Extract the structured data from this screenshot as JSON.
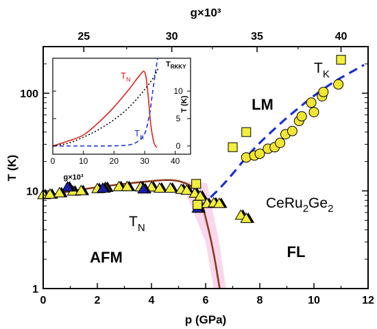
{
  "chart_data": [
    {
      "type": "scatter",
      "xlabel": "p (GPa)",
      "ylabel": "T (K)",
      "top_axis_label": "g×10³",
      "xlim": [
        0,
        12
      ],
      "ylim": [
        1,
        300
      ],
      "yscale": "log",
      "x_ticks": [
        "0",
        "2",
        "4",
        "6",
        "8",
        "10",
        "12"
      ],
      "y_ticks": [
        "1",
        "10",
        "100"
      ],
      "top_ticks": [
        "25",
        "30",
        "35",
        "40"
      ],
      "top_tick_positions_p": [
        1.5,
        4.75,
        7.9,
        11.0
      ],
      "region_labels": {
        "afm": "AFM",
        "lm": "LM",
        "fl": "FL",
        "compound_main": "CeRu",
        "compound_sub1": "2",
        "compound_mid": "Ge",
        "compound_sub2": "2",
        "tn_main": "T",
        "tn_sub": "N",
        "tk_main": "T",
        "tk_sub": "K"
      },
      "colors": {
        "tn_curve": "#8b3a1a",
        "tk_fit": "#1a2fd6",
        "yellow": "#f2ee3c",
        "navy": "#1c1fa8",
        "circle": "#f2e634",
        "band": "#f7cde8"
      },
      "series": [
        {
          "name": "T_N fit",
          "style": "line",
          "points": [
            [
              0,
              8.8
            ],
            [
              0.5,
              9.3
            ],
            [
              1,
              9.9
            ],
            [
              2,
              10.9
            ],
            [
              3,
              11.8
            ],
            [
              4,
              12.6
            ],
            [
              4.5,
              12.9
            ],
            [
              5,
              12.6
            ],
            [
              5.5,
              11
            ],
            [
              5.8,
              8.5
            ],
            [
              6.0,
              5.3
            ],
            [
              6.2,
              3.1
            ],
            [
              6.35,
              1.9
            ],
            [
              6.45,
              1.3
            ],
            [
              6.52,
              1
            ]
          ]
        },
        {
          "name": "T_K fit",
          "style": "dashed",
          "points": [
            [
              5.8,
              6.8
            ],
            [
              6.5,
              10.5
            ],
            [
              7.0,
              15
            ],
            [
              7.5,
              22
            ],
            [
              8.0,
              31
            ],
            [
              8.5,
              42
            ],
            [
              9.0,
              56
            ],
            [
              9.5,
              73
            ],
            [
              10.0,
              94
            ],
            [
              10.5,
              118
            ],
            [
              11.0,
              144
            ],
            [
              11.5,
              172
            ],
            [
              11.85,
              195
            ]
          ]
        },
        {
          "name": "T_N triangles (yellow/black)",
          "marker": "triangle",
          "points": [
            [
              0,
              9.1
            ],
            [
              0.25,
              9.2
            ],
            [
              0.6,
              9.5
            ],
            [
              1.1,
              9.9
            ],
            [
              1.4,
              10
            ],
            [
              2.0,
              10.5
            ],
            [
              2.3,
              10.8
            ],
            [
              2.8,
              11
            ],
            [
              3.1,
              11
            ],
            [
              3.6,
              10.9
            ],
            [
              4.0,
              10.9
            ],
            [
              4.3,
              10.6
            ],
            [
              4.7,
              10.6
            ],
            [
              5.1,
              10.3
            ],
            [
              5.3,
              10.1
            ],
            [
              5.6,
              9.4
            ],
            [
              5.8,
              8.8
            ],
            [
              6.05,
              7.4
            ],
            [
              6.3,
              7.5
            ],
            [
              6.5,
              7.4
            ],
            [
              7.3,
              5.6
            ],
            [
              7.5,
              5.2
            ]
          ]
        },
        {
          "name": "T_N triangles (blue)",
          "marker": "triangle",
          "points": [
            [
              0.9,
              10.9
            ],
            [
              2.2,
              10.6
            ],
            [
              3.7,
              10.4
            ],
            [
              5.7,
              6.6
            ]
          ]
        },
        {
          "name": "T_K squares",
          "marker": "square",
          "points": [
            [
              5.65,
              11.8
            ],
            [
              5.7,
              7.2
            ],
            [
              7.0,
              28
            ],
            [
              7.5,
              40
            ],
            [
              11.0,
              220
            ]
          ]
        },
        {
          "name": "T_K circles",
          "marker": "circle",
          "points": [
            [
              7.5,
              22
            ],
            [
              7.8,
              23
            ],
            [
              8.0,
              24
            ],
            [
              8.3,
              27
            ],
            [
              8.55,
              28
            ],
            [
              8.75,
              31
            ],
            [
              8.95,
              38
            ],
            [
              9.2,
              41
            ],
            [
              9.45,
              52
            ],
            [
              9.55,
              58
            ],
            [
              9.9,
              80
            ],
            [
              10.0,
              64
            ],
            [
              10.3,
              93
            ],
            [
              10.35,
              103
            ],
            [
              10.9,
              123
            ]
          ]
        }
      ]
    },
    {
      "type": "line",
      "xlabel": "g×10³",
      "ylabel": "T (K)",
      "xlim": [
        0,
        45
      ],
      "ylim": [
        -1.5,
        16
      ],
      "x_ticks": [
        "0",
        "10",
        "20",
        "30",
        "40"
      ],
      "y_ticks": [
        "0",
        "5",
        "10"
      ],
      "series": [
        {
          "name": "T_N",
          "color": "#e02020",
          "style": "solid",
          "points": [
            [
              0,
              0
            ],
            [
              5,
              0.9
            ],
            [
              10,
              2.0
            ],
            [
              15,
              4.3
            ],
            [
              20,
              7.1
            ],
            [
              25,
              10.4
            ],
            [
              28,
              12.6
            ],
            [
              30,
              13.5
            ],
            [
              31,
              10
            ],
            [
              32,
              4
            ],
            [
              33,
              0.7
            ],
            [
              34,
              -0.3
            ]
          ]
        },
        {
          "name": "T_RKKY",
          "color": "#000000",
          "style": "dotted",
          "points": [
            [
              0,
              0
            ],
            [
              5,
              0.5
            ],
            [
              10,
              1.6
            ],
            [
              15,
              3.0
            ],
            [
              20,
              4.8
            ],
            [
              25,
              7.1
            ],
            [
              30,
              10.3
            ],
            [
              33,
              12.6
            ],
            [
              34.5,
              14.2
            ]
          ]
        },
        {
          "name": "T_K",
          "color": "#1a2fd6",
          "style": "dashed",
          "points": [
            [
              0,
              0
            ],
            [
              10,
              0
            ],
            [
              15,
              0
            ],
            [
              20,
              0.03
            ],
            [
              25,
              0.2
            ],
            [
              28,
              0.9
            ],
            [
              30,
              2.2
            ],
            [
              31.5,
              5.5
            ],
            [
              32.5,
              9.4
            ],
            [
              33.5,
              13.3
            ],
            [
              34.2,
              15.9
            ]
          ]
        }
      ],
      "labels": {
        "tn_main": "T",
        "tn_sub": "N",
        "tk_main": "T",
        "tk_sub": "K",
        "trkky_main": "T",
        "trkky_sub": "RKKY"
      }
    }
  ]
}
